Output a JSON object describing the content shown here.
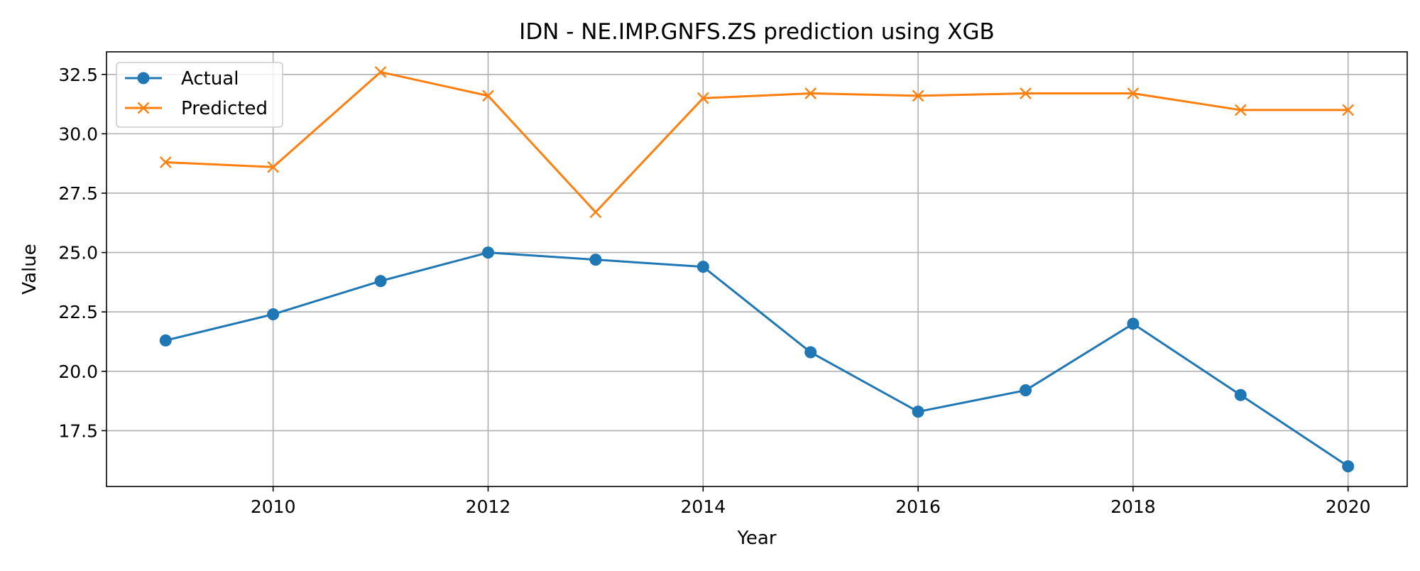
{
  "chart_data": {
    "type": "line",
    "title": "IDN - NE.IMP.GNFS.ZS prediction using XGB",
    "xlabel": "Year",
    "ylabel": "Value",
    "x": [
      2009,
      2010,
      2011,
      2012,
      2013,
      2014,
      2015,
      2016,
      2017,
      2018,
      2019,
      2020
    ],
    "series": [
      {
        "name": "Actual",
        "marker": "circle",
        "color": "#1f77b4",
        "values": [
          21.3,
          22.4,
          23.8,
          25.0,
          24.7,
          24.4,
          20.8,
          18.3,
          19.2,
          22.0,
          19.0,
          16.0
        ]
      },
      {
        "name": "Predicted",
        "marker": "x",
        "color": "#ff7f0e",
        "values": [
          28.8,
          28.6,
          32.6,
          31.6,
          26.7,
          31.5,
          31.7,
          31.6,
          31.7,
          31.7,
          31.0,
          31.0
        ]
      }
    ],
    "xlim": [
      2008.45,
      2020.55
    ],
    "ylim": [
      15.15,
      33.45
    ],
    "xticks": [
      "2010",
      "2012",
      "2014",
      "2016",
      "2018",
      "2020"
    ],
    "yticks": [
      "17.5",
      "20.0",
      "22.5",
      "25.0",
      "27.5",
      "30.0",
      "32.5"
    ],
    "grid": true,
    "legend_position": "upper-left"
  }
}
